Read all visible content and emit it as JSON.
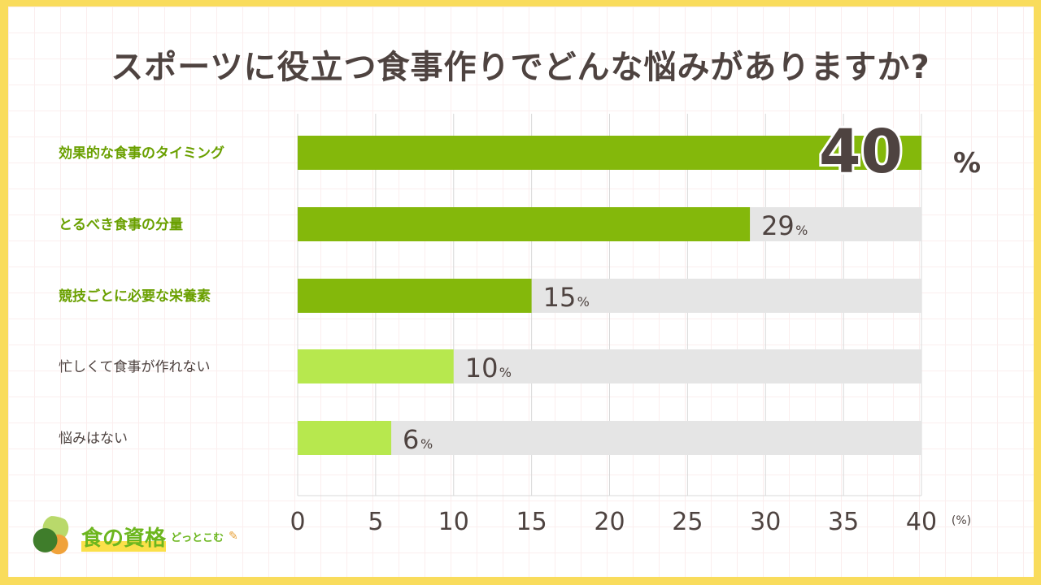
{
  "title": "スポーツに役立つ食事作りでどんな悩みがありますか?",
  "logo": {
    "name": "食の資格",
    "sub": "どっとこむ"
  },
  "colors": {
    "dark_green": "#84b80b",
    "light_green": "#b7e84e",
    "track": "#e5e5e5",
    "text": "#4e4340",
    "label_green": "#6aa000"
  },
  "chart_data": {
    "type": "bar",
    "orientation": "horizontal",
    "categories": [
      "効果的な食事のタイミング",
      "とるべき食事の分量",
      "競技ごとに必要な栄養素",
      "忙しくて食事が作れない",
      "悩みはない"
    ],
    "values": [
      40,
      29,
      15,
      10,
      6
    ],
    "highlight": [
      true,
      true,
      true,
      false,
      false
    ],
    "value_unit": "%",
    "xlim": [
      0,
      40
    ],
    "xticks": [
      0,
      5,
      10,
      15,
      20,
      25,
      30,
      35,
      40
    ],
    "xunit": "(%)",
    "grid": true
  }
}
